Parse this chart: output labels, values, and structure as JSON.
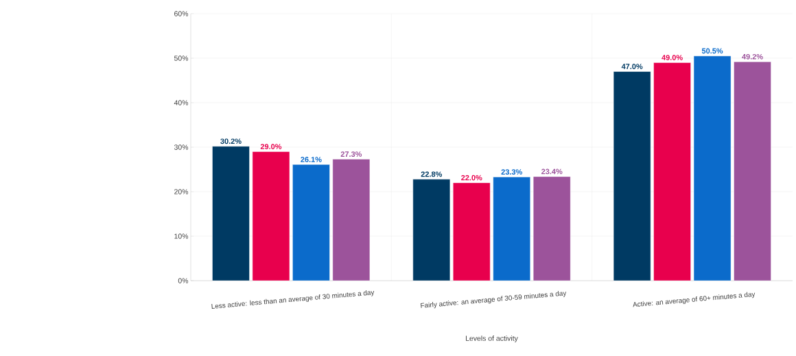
{
  "chart_data": {
    "type": "bar",
    "xlabel": "Levels of activity",
    "categories": [
      "Less active: less than an average of 30 minutes a day",
      "Fairly active: an average of 30-59 minutes a day",
      "Active: an average of 60+ minutes a day"
    ],
    "series": [
      {
        "color": "#003a63",
        "values": [
          30.2,
          22.8,
          47.0
        ],
        "value_labels": [
          "30.2%",
          "22.8%",
          "47.0%"
        ]
      },
      {
        "color": "#e8004d",
        "values": [
          29.0,
          22.0,
          49.0
        ],
        "value_labels": [
          "29.0%",
          "22.0%",
          "49.0%"
        ]
      },
      {
        "color": "#0b6bcb",
        "values": [
          26.1,
          23.3,
          50.5
        ],
        "value_labels": [
          "26.1%",
          "23.3%",
          "50.5%"
        ]
      },
      {
        "color": "#9c539b",
        "values": [
          27.3,
          23.4,
          49.2
        ],
        "value_labels": [
          "27.3%",
          "23.4%",
          "49.2%"
        ]
      }
    ],
    "ylim": [
      0,
      60
    ],
    "yticks": [
      {
        "value": 0,
        "label": "0%"
      },
      {
        "value": 10,
        "label": "10%"
      },
      {
        "value": 20,
        "label": "20%"
      },
      {
        "value": 30,
        "label": "30%"
      },
      {
        "value": 40,
        "label": "40%"
      },
      {
        "value": 50,
        "label": "50%"
      },
      {
        "value": 60,
        "label": "60%"
      }
    ],
    "grid": true
  }
}
